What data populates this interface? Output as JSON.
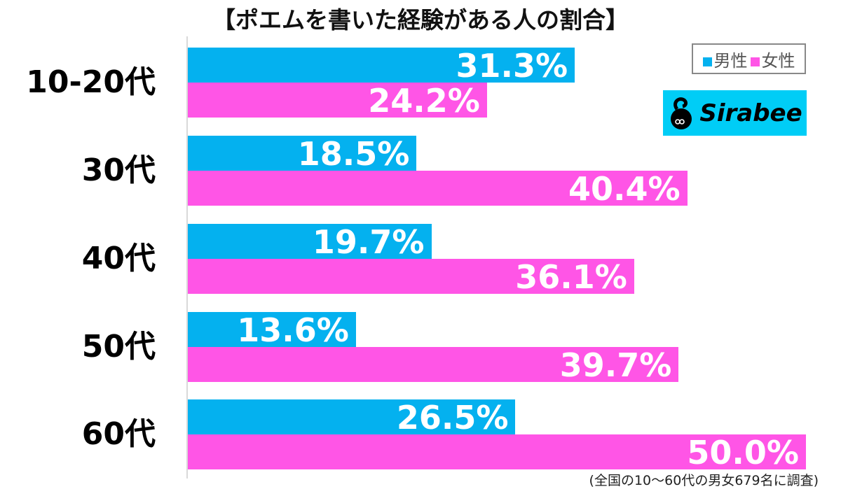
{
  "title": "【ポエムを書いた経験がある人の割合】",
  "legend": {
    "items": [
      {
        "label": "男性",
        "color": "#04b1ef"
      },
      {
        "label": "女性",
        "color": "#ff55e6"
      }
    ]
  },
  "logo": {
    "text": "Sirabee",
    "icon": "sirabee-mascot-icon",
    "bg_color": "#00cdf6"
  },
  "footnote": "(全国の10～60代の男女679名に調査)",
  "groups": [
    {
      "label": "10-20代",
      "male": "31.3%",
      "female": "24.2%"
    },
    {
      "label": "30代",
      "male": "18.5%",
      "female": "40.4%"
    },
    {
      "label": "40代",
      "male": "19.7%",
      "female": "36.1%"
    },
    {
      "label": "50代",
      "male": "13.6%",
      "female": "39.7%"
    },
    {
      "label": "60代",
      "male": "26.5%",
      "female": "50.0%"
    }
  ],
  "chart_data": {
    "type": "bar",
    "orientation": "horizontal",
    "title": "【ポエムを書いた経験がある人の割合】",
    "categories": [
      "10-20代",
      "30代",
      "40代",
      "50代",
      "60代"
    ],
    "series": [
      {
        "name": "男性",
        "color": "#04b1ef",
        "values": [
          31.3,
          18.5,
          19.7,
          13.6,
          26.5
        ]
      },
      {
        "name": "女性",
        "color": "#ff55e6",
        "values": [
          24.2,
          40.4,
          36.1,
          39.7,
          50.0
        ]
      }
    ],
    "xlabel": "",
    "ylabel": "",
    "xlim": [
      0,
      50
    ],
    "unit": "%",
    "grid": false,
    "legend_position": "top-right",
    "data_labels": true,
    "annotation": "(全国の10～60代の男女679名に調査)"
  }
}
